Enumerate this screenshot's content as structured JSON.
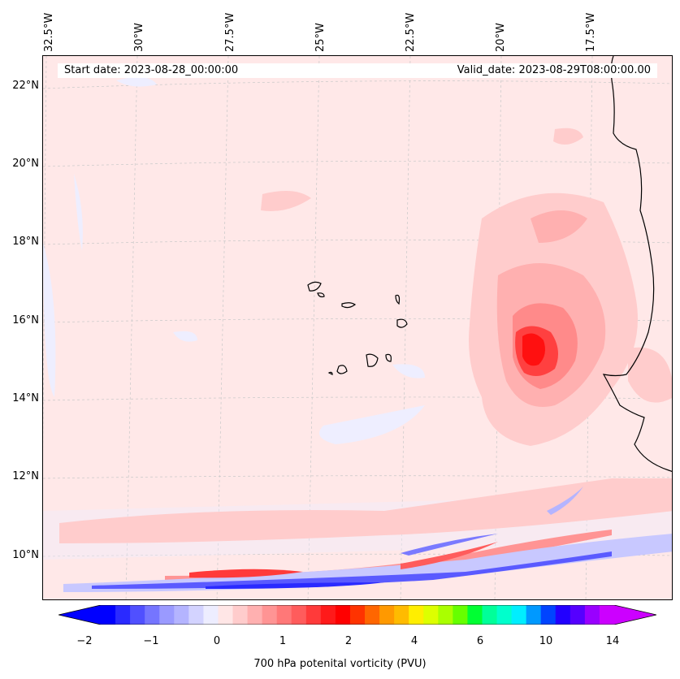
{
  "map": {
    "start_label": "Start date: 2023-08-28_00:00:00",
    "valid_label": "Valid_date: 2023-08-29T08:00:00.00",
    "lon_labels": [
      "32.5°W",
      "30°W",
      "27.5°W",
      "25°W",
      "22.5°W",
      "20°W",
      "17.5°W"
    ],
    "lat_labels": [
      "22°N",
      "20°N",
      "18°N",
      "16°N",
      "14°N",
      "12°N",
      "10°N"
    ],
    "field": "700 hPa potential vorticity",
    "region": "Eastern tropical Atlantic, Cape Verde Islands and West African coast"
  },
  "colorbar": {
    "title": "700 hPa potenital vorticity (PVU)",
    "tick_labels": [
      "−2",
      "−1",
      "0",
      "1",
      "2",
      "4",
      "6",
      "10",
      "14"
    ],
    "colors": [
      "#0000ff",
      "#2a2aff",
      "#5050ff",
      "#7575ff",
      "#9a9aff",
      "#b4b4ff",
      "#d3d3ff",
      "#ededff",
      "#ffe6e6",
      "#ffcccc",
      "#ffb0b0",
      "#ff9494",
      "#ff7878",
      "#ff5c5c",
      "#ff3a3a",
      "#ff1a1a",
      "#ff0000",
      "#ff3300",
      "#ff6600",
      "#ff9900",
      "#ffbb00",
      "#ffee00",
      "#ddff00",
      "#aaff00",
      "#66ff00",
      "#00ff33",
      "#00ff99",
      "#00ffcc",
      "#00eeff",
      "#0099ff",
      "#0044ff",
      "#2200ff",
      "#5500ff",
      "#9900ff",
      "#cc00ff"
    ],
    "under_color": "#0000ff",
    "over_color": "#cc00ff"
  }
}
